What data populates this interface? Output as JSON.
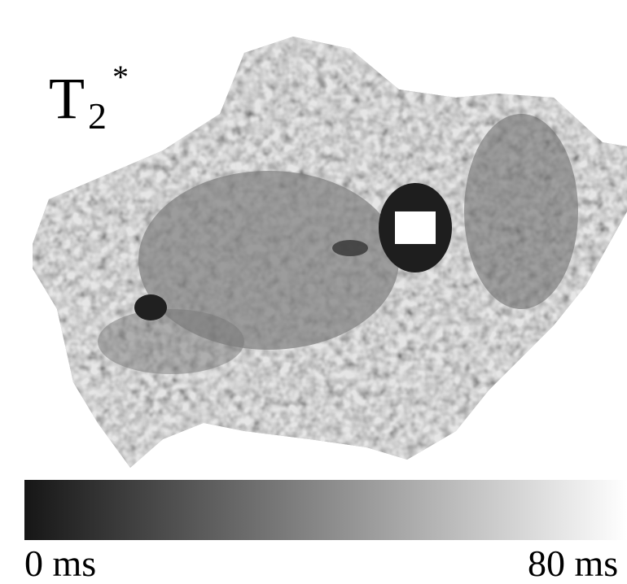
{
  "label": {
    "base": "T",
    "subscript": "2",
    "superscript": "*"
  },
  "colorbar": {
    "min_label": "0 ms",
    "max_label": "80 ms"
  }
}
